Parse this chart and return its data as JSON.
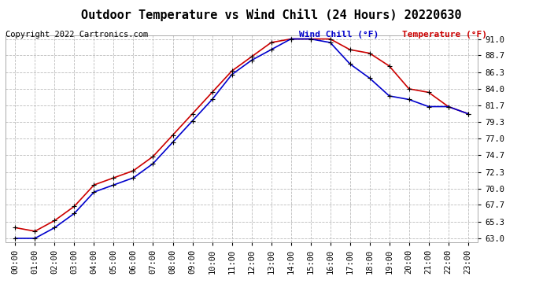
{
  "title": "Outdoor Temperature vs Wind Chill (24 Hours) 20220630",
  "copyright": "Copyright 2022 Cartronics.com",
  "legend_wind_chill": "Wind Chill (°F)",
  "legend_temperature": "Temperature (°F)",
  "x_labels": [
    "00:00",
    "01:00",
    "02:00",
    "03:00",
    "04:00",
    "05:00",
    "06:00",
    "07:00",
    "08:00",
    "09:00",
    "10:00",
    "11:00",
    "12:00",
    "13:00",
    "14:00",
    "15:00",
    "16:00",
    "17:00",
    "18:00",
    "19:00",
    "20:00",
    "21:00",
    "22:00",
    "23:00"
  ],
  "y_ticks": [
    63.0,
    65.3,
    67.7,
    70.0,
    72.3,
    74.7,
    77.0,
    79.3,
    81.7,
    84.0,
    86.3,
    88.7,
    91.0
  ],
  "ylim": [
    62.5,
    91.5
  ],
  "temperature": [
    64.5,
    64.0,
    65.5,
    67.5,
    70.5,
    71.5,
    72.5,
    74.5,
    77.5,
    80.5,
    83.5,
    86.5,
    88.5,
    90.5,
    91.0,
    91.0,
    91.0,
    89.5,
    89.0,
    87.2,
    84.0,
    83.5,
    81.5,
    80.5
  ],
  "wind_chill": [
    63.0,
    63.0,
    64.5,
    66.5,
    69.5,
    70.5,
    71.5,
    73.5,
    76.5,
    79.5,
    82.5,
    86.0,
    88.0,
    89.5,
    91.0,
    91.0,
    90.5,
    87.5,
    85.5,
    83.0,
    82.5,
    81.5,
    81.5,
    80.5
  ],
  "temp_color": "#cc0000",
  "wind_chill_color": "#0000cc",
  "bg_color": "#ffffff",
  "grid_color": "#bbbbbb",
  "title_fontsize": 11,
  "copyright_fontsize": 7.5,
  "legend_fontsize": 8,
  "tick_fontsize": 7.5
}
